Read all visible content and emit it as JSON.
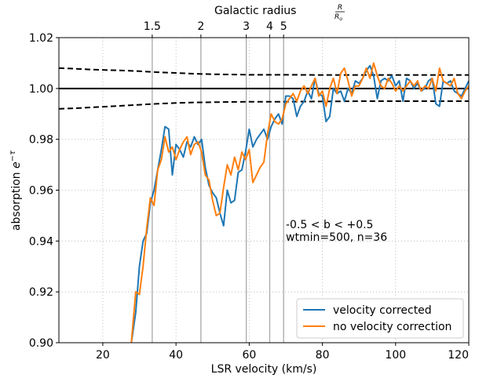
{
  "chart_data": {
    "type": "line",
    "xlabel": "LSR velocity (km/s)",
    "ylabel_prefix": "absorption ",
    "ylabel_var": "e",
    "ylabel_sup": "−τ",
    "top_axis_label": "Galactic radius",
    "top_axis_frac_num": "R",
    "top_axis_frac_den": "R",
    "top_axis_frac_den_sub": "o",
    "xlim": [
      8,
      120
    ],
    "ylim": [
      0.9,
      1.02
    ],
    "x_ticks": [
      20,
      40,
      60,
      80,
      100,
      120
    ],
    "y_ticks": [
      0.9,
      0.92,
      0.94,
      0.96,
      0.98,
      1.0,
      1.02
    ],
    "grid": "dotted",
    "radius_markers": [
      {
        "label": "1.5",
        "x": 33.5
      },
      {
        "label": "2",
        "x": 46.8
      },
      {
        "label": "3",
        "x": 59.2
      },
      {
        "label": "4",
        "x": 65.6
      },
      {
        "label": "5",
        "x": 69.4
      }
    ],
    "annotation_line1": "-0.5 < b < +0.5",
    "annotation_line2": "wtmin=500, n=36",
    "reference_line": 1.0,
    "envelope": {
      "x": [
        8,
        12,
        16,
        20,
        25,
        30,
        35,
        40,
        45,
        50,
        55,
        60,
        70,
        80,
        90,
        100,
        110,
        120
      ],
      "upper": [
        1.008,
        1.0078,
        1.0075,
        1.0073,
        1.0071,
        1.0068,
        1.0064,
        1.0061,
        1.0058,
        1.0056,
        1.0055,
        1.0054,
        1.0054,
        1.0053,
        1.0053,
        1.0053,
        1.0053,
        1.0053
      ],
      "lower": [
        0.992,
        0.9922,
        0.9925,
        0.9928,
        0.9932,
        0.9936,
        0.994,
        0.9943,
        0.9945,
        0.9946,
        0.9947,
        0.9948,
        0.9948,
        0.9949,
        0.995,
        0.995,
        0.995,
        0.995
      ]
    },
    "legend_position": "lower-right",
    "series": [
      {
        "name": "velocity corrected",
        "color": "#1f77b4",
        "x": [
          27.8,
          29,
          30,
          31,
          32,
          33,
          34,
          35,
          36,
          37,
          38,
          39,
          40,
          41,
          42,
          43,
          44,
          45,
          46,
          47,
          48,
          49,
          50,
          51,
          52,
          53,
          54,
          55,
          56,
          57,
          58,
          59,
          60,
          61,
          62,
          63,
          64,
          65,
          66,
          67,
          68,
          69,
          70,
          71,
          72,
          73,
          74,
          75,
          76,
          77,
          78,
          79,
          80,
          81,
          82,
          83,
          84,
          85,
          86,
          87,
          88,
          89,
          90,
          91,
          92,
          93,
          94,
          95,
          96,
          97,
          98,
          99,
          100,
          101,
          102,
          103,
          104,
          105,
          106,
          107,
          108,
          109,
          110,
          111,
          112,
          113,
          114,
          115,
          116,
          117,
          118,
          119,
          120
        ],
        "y": [
          0.9,
          0.912,
          0.93,
          0.94,
          0.943,
          0.955,
          0.96,
          0.968,
          0.976,
          0.985,
          0.984,
          0.966,
          0.978,
          0.976,
          0.973,
          0.979,
          0.977,
          0.981,
          0.978,
          0.98,
          0.969,
          0.962,
          0.959,
          0.957,
          0.951,
          0.946,
          0.96,
          0.955,
          0.956,
          0.967,
          0.968,
          0.975,
          0.984,
          0.977,
          0.98,
          0.982,
          0.984,
          0.98,
          0.985,
          0.988,
          0.99,
          0.986,
          0.997,
          0.997,
          0.996,
          0.989,
          0.993,
          0.995,
          0.999,
          0.996,
          1.004,
          0.998,
          0.997,
          0.987,
          0.989,
          1.0,
          0.998,
          0.999,
          0.995,
          1.0,
          0.998,
          1.003,
          1.002,
          1.004,
          1.007,
          1.009,
          1.005,
          0.996,
          1.003,
          1.004,
          1.003,
          1.005,
          1.001,
          1.003,
          0.995,
          1.004,
          1.003,
          1.0,
          1.002,
          0.999,
          1.0,
          1.003,
          1.004,
          0.994,
          0.993,
          1.003,
          1.002,
          1.003,
          0.999,
          0.998,
          0.997,
          1.0,
          1.003
        ]
      },
      {
        "name": "no velocity correction",
        "color": "#ff7f0e",
        "x": [
          27.8,
          29,
          30,
          31,
          32,
          33,
          34,
          35,
          36,
          37,
          38,
          39,
          40,
          41,
          42,
          43,
          44,
          45,
          46,
          47,
          48,
          49,
          50,
          51,
          52,
          53,
          54,
          55,
          56,
          57,
          58,
          59,
          60,
          61,
          62,
          63,
          64,
          65,
          66,
          67,
          68,
          69,
          70,
          71,
          72,
          73,
          74,
          75,
          76,
          77,
          78,
          79,
          80,
          81,
          82,
          83,
          84,
          85,
          86,
          87,
          88,
          89,
          90,
          91,
          92,
          93,
          94,
          95,
          96,
          97,
          98,
          99,
          100,
          101,
          102,
          103,
          104,
          105,
          106,
          107,
          108,
          109,
          110,
          111,
          112,
          113,
          114,
          115,
          116,
          117,
          118,
          119,
          120
        ],
        "y": [
          0.9,
          0.92,
          0.919,
          0.93,
          0.945,
          0.957,
          0.954,
          0.968,
          0.972,
          0.981,
          0.975,
          0.977,
          0.972,
          0.976,
          0.979,
          0.981,
          0.974,
          0.978,
          0.979,
          0.975,
          0.966,
          0.964,
          0.956,
          0.95,
          0.951,
          0.961,
          0.97,
          0.966,
          0.973,
          0.968,
          0.975,
          0.972,
          0.976,
          0.963,
          0.966,
          0.969,
          0.971,
          0.982,
          0.99,
          0.987,
          0.986,
          0.988,
          0.994,
          0.996,
          0.998,
          0.995,
          0.999,
          1.001,
          0.998,
          1.001,
          1.004,
          0.997,
          0.999,
          0.993,
          1.0,
          1.004,
          0.998,
          1.006,
          1.008,
          1.003,
          0.997,
          1.001,
          1.001,
          1.004,
          1.008,
          1.004,
          1.01,
          1.005,
          1.001,
          1.0,
          1.004,
          1.002,
          0.999,
          1.001,
          0.999,
          1.001,
          1.003,
          1.001,
          1.003,
          0.999,
          1.001,
          1.0,
          1.004,
          0.999,
          1.008,
          1.003,
          1.002,
          1.001,
          1.004,
          0.998,
          0.996,
          0.999,
          1.001
        ]
      }
    ]
  }
}
